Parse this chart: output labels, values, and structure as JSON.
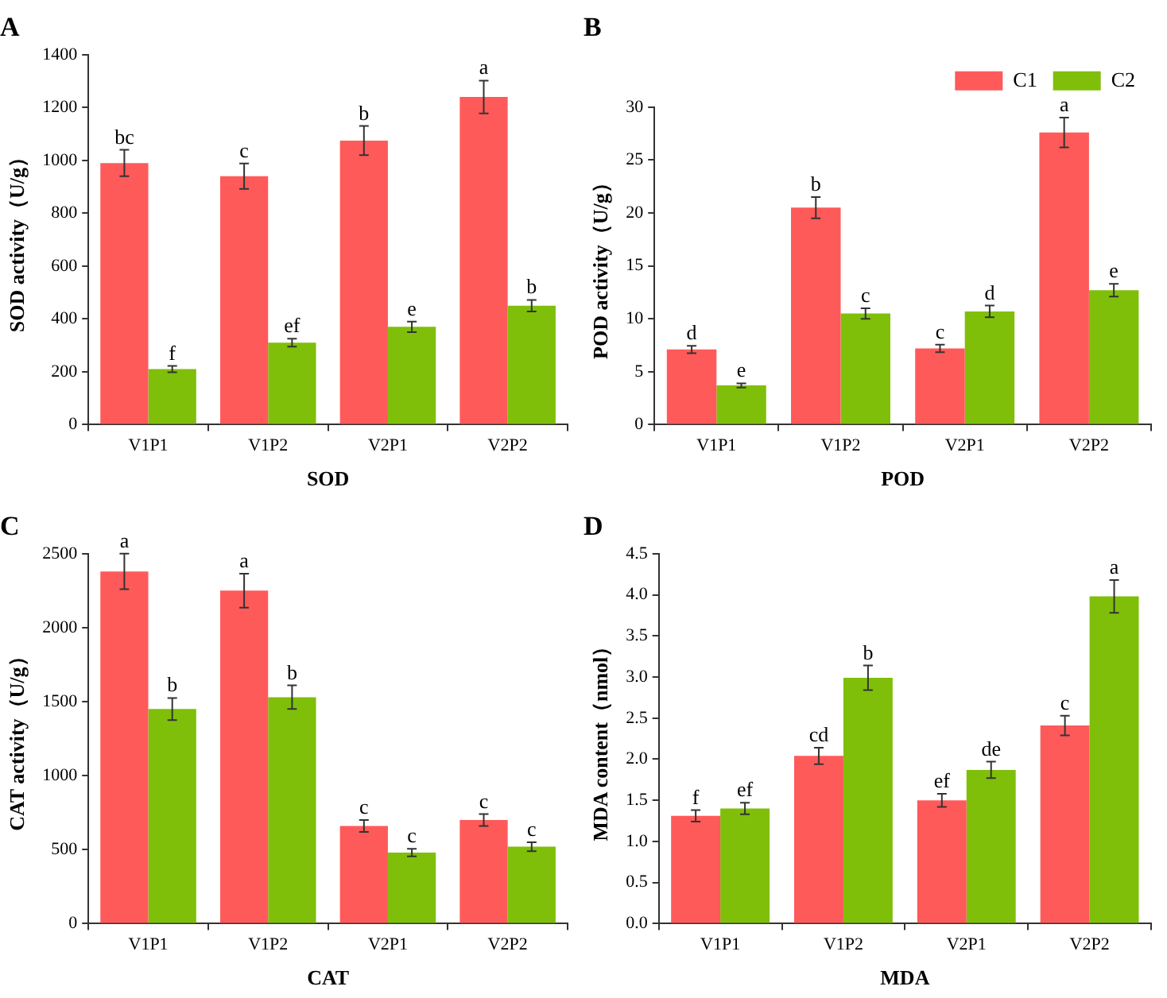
{
  "chart_data": [
    {
      "type": "bar",
      "title": "A",
      "xlabel": "SOD",
      "ylabel": "SOD activity（U/g）",
      "categories": [
        "V1P1",
        "V1P2",
        "V2P1",
        "V2P2"
      ],
      "series": [
        {
          "color": "#ff5a5a",
          "values": [
            990,
            940,
            1075,
            1240
          ],
          "errors": [
            50,
            48,
            55,
            62
          ]
        },
        {
          "color": "#7fbf0a",
          "values": [
            210,
            310,
            370,
            450
          ],
          "errors": [
            12,
            15,
            20,
            22
          ]
        }
      ],
      "ylim": [
        0,
        1400
      ],
      "yticks": [
        0,
        200,
        400,
        600,
        800,
        1000,
        1200,
        1400
      ],
      "annotations": [
        {
          "text": "bc",
          "x": "V1P1",
          "y": 990
        },
        {
          "text": "c",
          "x": "V1P2",
          "y": 940
        },
        {
          "text": "b",
          "x": "V2P1",
          "y": 1075
        },
        {
          "text": "a",
          "x": "V2P2",
          "y": 1240
        },
        {
          "text": "f",
          "x": "V1P1",
          "y": 210
        },
        {
          "text": "ef",
          "x": "V1P2",
          "y": 310
        },
        {
          "text": "e",
          "x": "V2P1",
          "y": 370
        },
        {
          "text": "b",
          "x": "V2P2",
          "y": 450
        }
      ]
    },
    {
      "type": "bar",
      "title": "B",
      "xlabel": "POD",
      "ylabel": "POD activity（U/g）",
      "categories": [
        "V1P1",
        "V1P2",
        "V2P1",
        "V2P2"
      ],
      "series": [
        {
          "name": "C1",
          "color": "#ff5a5a",
          "values": [
            7.1,
            20.5,
            7.2,
            27.6
          ],
          "errors": [
            0.35,
            1.0,
            0.35,
            1.4
          ]
        },
        {
          "name": "C2",
          "color": "#7fbf0a",
          "values": [
            3.7,
            10.5,
            10.7,
            12.7
          ],
          "errors": [
            0.2,
            0.5,
            0.55,
            0.6
          ]
        }
      ],
      "ylim": [
        0,
        30
      ],
      "yticks": [
        0,
        5,
        10,
        15,
        20,
        25,
        30
      ],
      "legend": "top right",
      "annotations": [
        {
          "text": "d",
          "x": "V1P1",
          "y": 7.1
        },
        {
          "text": "e",
          "x": "V1P1",
          "y": 3.7
        },
        {
          "text": "b",
          "x": "V1P2",
          "y": 20.5
        },
        {
          "text": "c",
          "x": "V1P2",
          "y": 10.5
        },
        {
          "text": "c",
          "x": "V2P1",
          "y": 7.2
        },
        {
          "text": "d",
          "x": "V2P1",
          "y": 10.7
        },
        {
          "text": "a",
          "x": "V2P2",
          "y": 27.6
        },
        {
          "text": "e",
          "x": "V2P2",
          "y": 12.7
        }
      ]
    },
    {
      "type": "bar",
      "title": "C",
      "xlabel": "CAT",
      "ylabel": "CAT activity（U/g）",
      "categories": [
        "V1P1",
        "V1P2",
        "V2P1",
        "V2P2"
      ],
      "series": [
        {
          "color": "#ff5a5a",
          "values": [
            2380,
            2250,
            660,
            700
          ],
          "errors": [
            120,
            115,
            40,
            40
          ]
        },
        {
          "color": "#7fbf0a",
          "values": [
            1450,
            1530,
            480,
            520
          ],
          "errors": [
            75,
            80,
            25,
            30
          ]
        }
      ],
      "ylim": [
        0,
        2500
      ],
      "yticks": [
        0,
        500,
        1000,
        1500,
        2000,
        2500
      ],
      "annotations": [
        {
          "text": "a",
          "x": "V1P1",
          "y": 2380
        },
        {
          "text": "a",
          "x": "V1P2",
          "y": 2250
        },
        {
          "text": "c",
          "x": "V2P1",
          "y": 660
        },
        {
          "text": "c",
          "x": "V2P2",
          "y": 700
        },
        {
          "text": "b",
          "x": "V1P1",
          "y": 1450
        },
        {
          "text": "b",
          "x": "V1P2",
          "y": 1530
        },
        {
          "text": "c",
          "x": "V2P1",
          "y": 480
        },
        {
          "text": "c",
          "x": "V2P2",
          "y": 520
        }
      ]
    },
    {
      "type": "bar",
      "title": "D",
      "xlabel": "MDA",
      "ylabel": "MDA content（nmol）",
      "categories": [
        "V1P1",
        "V1P2",
        "V2P1",
        "V2P2"
      ],
      "series": [
        {
          "color": "#ff5a5a",
          "values": [
            1.31,
            2.04,
            1.5,
            2.41
          ],
          "errors": [
            0.07,
            0.1,
            0.08,
            0.12
          ]
        },
        {
          "color": "#7fbf0a",
          "values": [
            1.4,
            2.99,
            1.87,
            3.98
          ],
          "errors": [
            0.07,
            0.15,
            0.1,
            0.2
          ]
        }
      ],
      "ylim": [
        0,
        4.5
      ],
      "yticks": [
        {
          "value": 0,
          "label": "0.0"
        },
        {
          "value": 0.5,
          "label": "0.5"
        },
        {
          "value": 1,
          "label": "1.0"
        },
        {
          "value": 1.5,
          "label": "1.5"
        },
        {
          "value": 2,
          "label": "2.0"
        },
        {
          "value": 2.5,
          "label": "2.5"
        },
        {
          "value": 3,
          "label": "3.0"
        },
        {
          "value": 3.5,
          "label": "3.5"
        },
        {
          "value": 4,
          "label": "4.0"
        },
        {
          "value": 4.5,
          "label": "4.5"
        }
      ],
      "annotations": [
        {
          "text": "f",
          "x": "V1P1",
          "y": 1.31
        },
        {
          "text": "cd",
          "x": "V1P2",
          "y": 2.04
        },
        {
          "text": "ef",
          "x": "V2P1",
          "y": 1.5
        },
        {
          "text": "c",
          "x": "V2P2",
          "y": 2.41
        },
        {
          "text": "ef",
          "x": "V1P1",
          "y": 1.4
        },
        {
          "text": "b",
          "x": "V1P2",
          "y": 2.99
        },
        {
          "text": "de",
          "x": "V2P1",
          "y": 1.87
        },
        {
          "text": "a",
          "x": "V2P2",
          "y": 3.98
        }
      ]
    }
  ]
}
